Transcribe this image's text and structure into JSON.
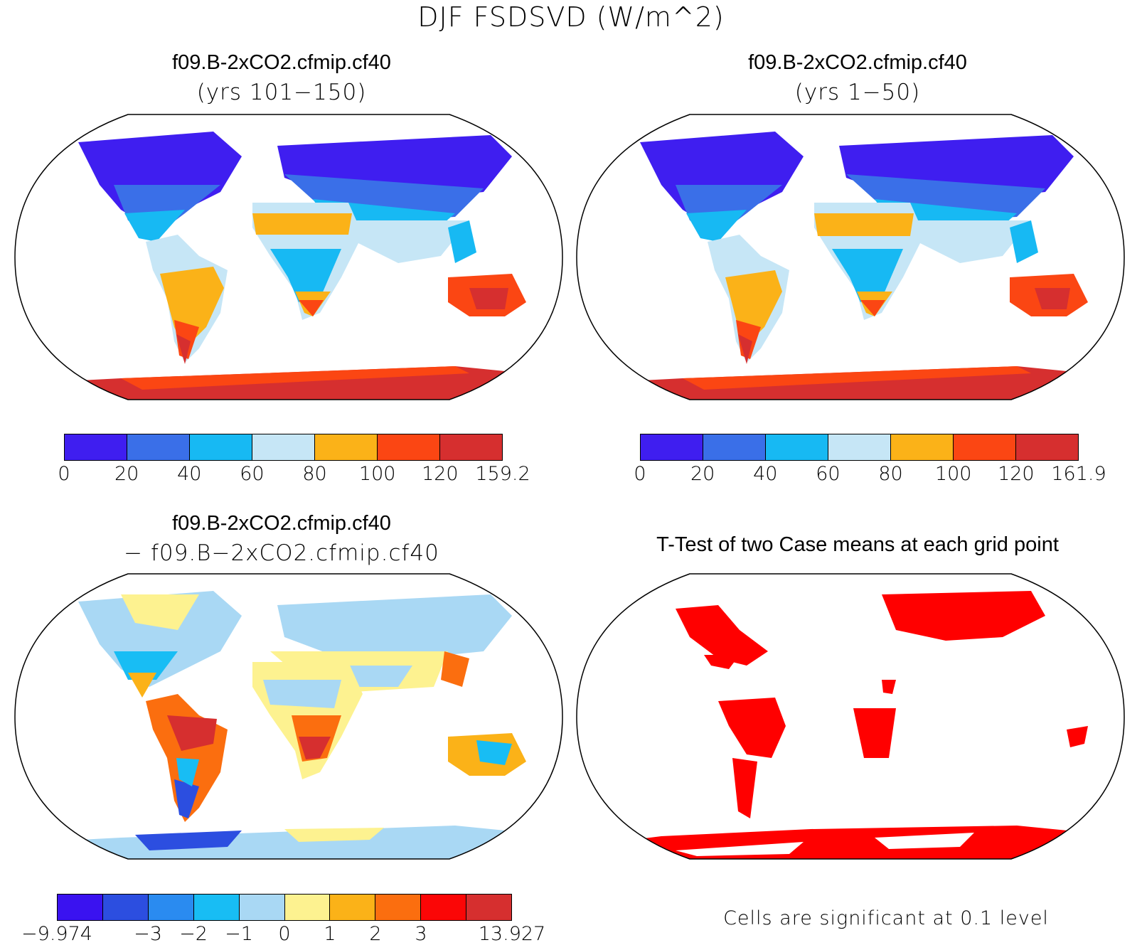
{
  "figure_title": "DJF FSDSVD (W/m^2)",
  "panels": {
    "top_left": {
      "title": "f09.B-2xCO2.cfmip.cf40",
      "subtitle": "(yrs 101−150)",
      "colorbar": {
        "colors": [
          "#3f1ef0",
          "#3a6fe8",
          "#17b9f3",
          "#c6e6f6",
          "#fbb218",
          "#fb4613",
          "#d62f2f"
        ],
        "ticks": [
          "0",
          "20",
          "40",
          "60",
          "80",
          "100",
          "120",
          "159.2"
        ]
      }
    },
    "top_right": {
      "title": "f09.B-2xCO2.cfmip.cf40",
      "subtitle": "(yrs 1−50)",
      "colorbar": {
        "colors": [
          "#3f1ef0",
          "#3a6fe8",
          "#17b9f3",
          "#c6e6f6",
          "#fbb218",
          "#fb4613",
          "#d62f2f"
        ],
        "ticks": [
          "0",
          "20",
          "40",
          "60",
          "80",
          "100",
          "120",
          "161.9"
        ]
      }
    },
    "bottom_left": {
      "title": "f09.B-2xCO2.cfmip.cf40",
      "subtitle": "− f09.B−2xCO2.cfmip.cf40",
      "colorbar": {
        "colors": [
          "#3a12f0",
          "#2c4ee0",
          "#2a8bf0",
          "#18bdf4",
          "#a9d8f4",
          "#fdf290",
          "#fbb218",
          "#fb6e0f",
          "#fb0606",
          "#d62f2f"
        ],
        "ticks": [
          "−9.974",
          "",
          "−3",
          "−2",
          "−1",
          "0",
          "1",
          "2",
          "3",
          "",
          "13.927"
        ]
      }
    },
    "bottom_right": {
      "title": "T-Test of two Case means at each grid point",
      "note": "Cells are significant at 0.1 level",
      "significant_color": "#ff0000"
    }
  },
  "map_colors": {
    "ocean": "#ffffff",
    "outline": "#000000"
  }
}
